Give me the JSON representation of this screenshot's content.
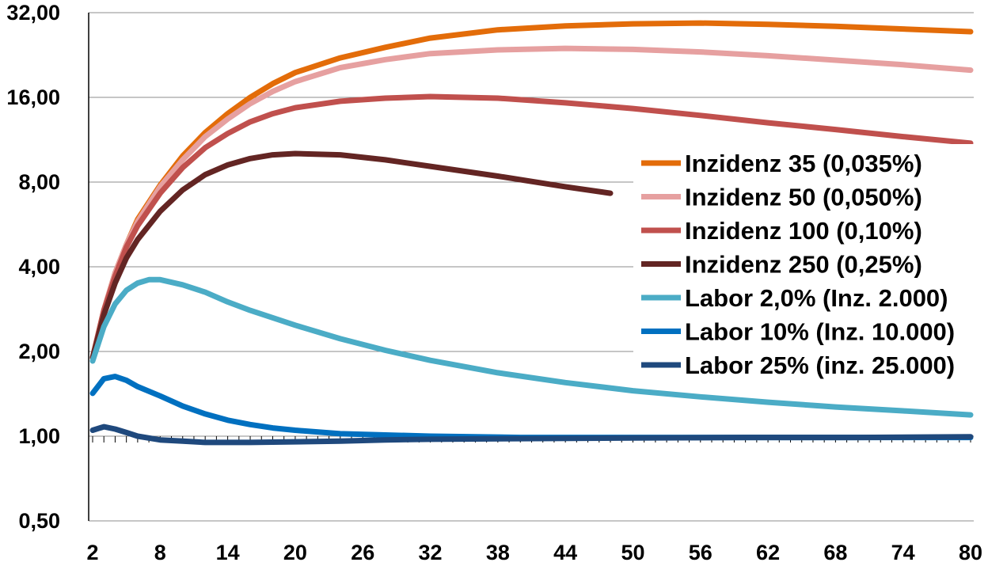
{
  "chart_data": {
    "type": "line",
    "y_scale": "log2",
    "ylim": [
      0.5,
      32
    ],
    "xlim": [
      2,
      80
    ],
    "grid": "horizontal",
    "legend_position": "right",
    "y_ticks": [
      {
        "value": 0.5,
        "label": "0,50"
      },
      {
        "value": 1,
        "label": "1,00"
      },
      {
        "value": 2,
        "label": "2,00"
      },
      {
        "value": 4,
        "label": "4,00"
      },
      {
        "value": 8,
        "label": "8,00"
      },
      {
        "value": 16,
        "label": "16,00"
      },
      {
        "value": 32,
        "label": "32,00"
      }
    ],
    "x_ticks": [
      {
        "value": 2,
        "label": "2"
      },
      {
        "value": 8,
        "label": "8"
      },
      {
        "value": 14,
        "label": "14"
      },
      {
        "value": 20,
        "label": "20"
      },
      {
        "value": 26,
        "label": "26"
      },
      {
        "value": 32,
        "label": "32"
      },
      {
        "value": 38,
        "label": "38"
      },
      {
        "value": 44,
        "label": "44"
      },
      {
        "value": 50,
        "label": "50"
      },
      {
        "value": 56,
        "label": "56"
      },
      {
        "value": 62,
        "label": "62"
      },
      {
        "value": 68,
        "label": "68"
      },
      {
        "value": 74,
        "label": "74"
      },
      {
        "value": 80,
        "label": "80"
      }
    ],
    "series": [
      {
        "name": "Inzidenz 35 (0,035%)",
        "color": "#E36C09",
        "points": [
          [
            2,
            1.9
          ],
          [
            3,
            2.8
          ],
          [
            4,
            3.8
          ],
          [
            5,
            4.8
          ],
          [
            6,
            5.9
          ],
          [
            8,
            7.8
          ],
          [
            10,
            9.9
          ],
          [
            12,
            12.0
          ],
          [
            14,
            14.0
          ],
          [
            16,
            16.0
          ],
          [
            18,
            17.9
          ],
          [
            20,
            19.6
          ],
          [
            24,
            22.1
          ],
          [
            28,
            24.1
          ],
          [
            32,
            26.0
          ],
          [
            38,
            27.8
          ],
          [
            44,
            28.7
          ],
          [
            50,
            29.2
          ],
          [
            56,
            29.4
          ],
          [
            62,
            29.1
          ],
          [
            68,
            28.6
          ],
          [
            74,
            28.0
          ],
          [
            80,
            27.4
          ]
        ]
      },
      {
        "name": "Inzidenz 50 (0,050%)",
        "color": "#E6A0A0",
        "points": [
          [
            2,
            1.9
          ],
          [
            3,
            2.8
          ],
          [
            4,
            3.8
          ],
          [
            5,
            4.8
          ],
          [
            6,
            5.8
          ],
          [
            8,
            7.7
          ],
          [
            10,
            9.6
          ],
          [
            12,
            11.6
          ],
          [
            14,
            13.4
          ],
          [
            16,
            15.2
          ],
          [
            18,
            16.8
          ],
          [
            20,
            18.2
          ],
          [
            24,
            20.4
          ],
          [
            28,
            21.8
          ],
          [
            32,
            22.9
          ],
          [
            38,
            23.6
          ],
          [
            44,
            23.9
          ],
          [
            50,
            23.7
          ],
          [
            56,
            23.2
          ],
          [
            62,
            22.5
          ],
          [
            68,
            21.7
          ],
          [
            74,
            20.9
          ],
          [
            80,
            20.0
          ]
        ]
      },
      {
        "name": "Inzidenz 100 (0,10%)",
        "color": "#C0504D",
        "points": [
          [
            2,
            1.9
          ],
          [
            3,
            2.8
          ],
          [
            4,
            3.7
          ],
          [
            5,
            4.7
          ],
          [
            6,
            5.6
          ],
          [
            8,
            7.3
          ],
          [
            10,
            9.0
          ],
          [
            12,
            10.6
          ],
          [
            14,
            11.9
          ],
          [
            16,
            13.1
          ],
          [
            18,
            14.0
          ],
          [
            20,
            14.7
          ],
          [
            24,
            15.5
          ],
          [
            28,
            15.9
          ],
          [
            32,
            16.1
          ],
          [
            38,
            15.9
          ],
          [
            44,
            15.3
          ],
          [
            50,
            14.6
          ],
          [
            56,
            13.8
          ],
          [
            62,
            13.0
          ],
          [
            68,
            12.3
          ],
          [
            74,
            11.6
          ],
          [
            80,
            11.0
          ]
        ]
      },
      {
        "name": "Inzidenz 250 (0,25%)",
        "color": "#632523",
        "points": [
          [
            2,
            1.9
          ],
          [
            3,
            2.7
          ],
          [
            4,
            3.5
          ],
          [
            5,
            4.3
          ],
          [
            6,
            5.0
          ],
          [
            8,
            6.3
          ],
          [
            10,
            7.5
          ],
          [
            12,
            8.5
          ],
          [
            14,
            9.2
          ],
          [
            16,
            9.7
          ],
          [
            18,
            10.0
          ],
          [
            20,
            10.1
          ],
          [
            24,
            10.0
          ],
          [
            28,
            9.6
          ],
          [
            32,
            9.1
          ],
          [
            38,
            8.4
          ],
          [
            44,
            7.7
          ],
          [
            48,
            7.3
          ]
        ]
      },
      {
        "name": "Labor 2,0% (Inz. 2.000)",
        "color": "#4BACC6",
        "points": [
          [
            2,
            1.85
          ],
          [
            3,
            2.45
          ],
          [
            4,
            2.95
          ],
          [
            5,
            3.3
          ],
          [
            6,
            3.5
          ],
          [
            7,
            3.6
          ],
          [
            8,
            3.6
          ],
          [
            10,
            3.45
          ],
          [
            12,
            3.25
          ],
          [
            14,
            3.0
          ],
          [
            16,
            2.8
          ],
          [
            20,
            2.48
          ],
          [
            24,
            2.22
          ],
          [
            28,
            2.02
          ],
          [
            32,
            1.86
          ],
          [
            38,
            1.68
          ],
          [
            44,
            1.55
          ],
          [
            50,
            1.45
          ],
          [
            56,
            1.38
          ],
          [
            62,
            1.32
          ],
          [
            68,
            1.27
          ],
          [
            74,
            1.23
          ],
          [
            80,
            1.19
          ]
        ]
      },
      {
        "name": "Labor 10% (Inz. 10.000)",
        "color": "#0070C0",
        "points": [
          [
            2,
            1.42
          ],
          [
            3,
            1.6
          ],
          [
            4,
            1.63
          ],
          [
            5,
            1.58
          ],
          [
            6,
            1.5
          ],
          [
            8,
            1.39
          ],
          [
            10,
            1.28
          ],
          [
            12,
            1.2
          ],
          [
            14,
            1.14
          ],
          [
            16,
            1.1
          ],
          [
            18,
            1.07
          ],
          [
            20,
            1.05
          ],
          [
            24,
            1.02
          ],
          [
            28,
            1.01
          ],
          [
            32,
            1.0
          ],
          [
            40,
            0.99
          ],
          [
            50,
            0.99
          ],
          [
            60,
            0.99
          ],
          [
            70,
            0.99
          ],
          [
            80,
            0.99
          ]
        ]
      },
      {
        "name": "Labor 25% (inz. 25.000)",
        "color": "#1F497D",
        "points": [
          [
            2,
            1.05
          ],
          [
            3,
            1.08
          ],
          [
            4,
            1.06
          ],
          [
            5,
            1.03
          ],
          [
            6,
            1.0
          ],
          [
            8,
            0.97
          ],
          [
            10,
            0.96
          ],
          [
            12,
            0.95
          ],
          [
            14,
            0.95
          ],
          [
            16,
            0.95
          ],
          [
            20,
            0.955
          ],
          [
            24,
            0.96
          ],
          [
            28,
            0.97
          ],
          [
            32,
            0.975
          ],
          [
            40,
            0.98
          ],
          [
            50,
            0.985
          ],
          [
            60,
            0.99
          ],
          [
            70,
            0.99
          ],
          [
            80,
            0.995
          ]
        ]
      }
    ]
  }
}
